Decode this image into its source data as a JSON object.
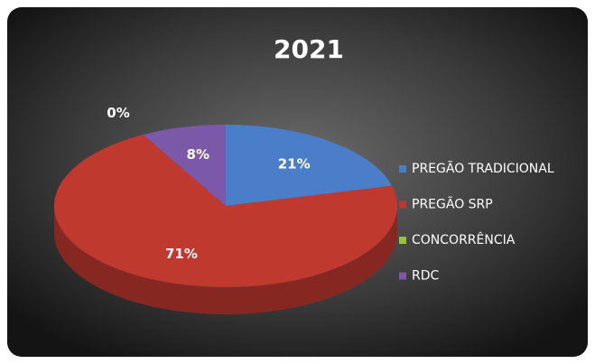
{
  "chart_data": {
    "type": "pie3d",
    "title": "2021",
    "categories": [
      "PREGÃO TRADICIONAL",
      "PREGÃO SRP",
      "CONCORRÊNCIA",
      "RDC"
    ],
    "values": [
      21,
      71,
      0,
      8
    ],
    "value_labels": [
      "21%",
      "71%",
      "0%",
      "8%"
    ],
    "colors": [
      "#4a7ec9",
      "#c0392f",
      "#94c23c",
      "#7b58a8"
    ],
    "legend": "right"
  }
}
